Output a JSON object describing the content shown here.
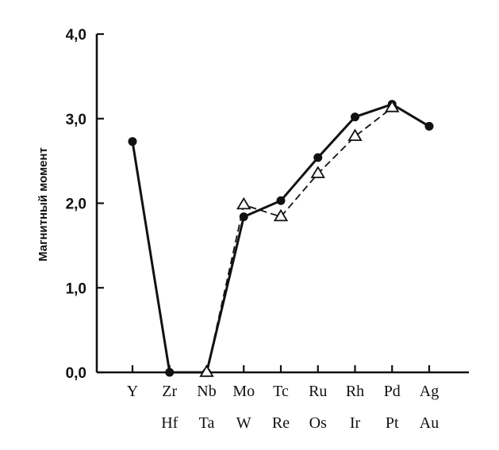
{
  "chart_data": {
    "type": "line",
    "title": "",
    "xlabel": "",
    "ylabel": "Магнитный момент",
    "ylim": [
      0,
      4
    ],
    "yticks": [
      "0,0",
      "1,0",
      "2,0",
      "3,0",
      "4,0"
    ],
    "categories_row1": [
      "Y",
      "Zr",
      "Nb",
      "Mo",
      "Tc",
      "Ru",
      "Rh",
      "Pd",
      "Ag"
    ],
    "categories_row2": [
      "",
      "Hf",
      "Ta",
      "W",
      "Re",
      "Os",
      "Ir",
      "Pt",
      "Au"
    ],
    "series": [
      {
        "marker": "filled-circle",
        "line": "solid",
        "values": [
          2.73,
          0.0,
          0.0,
          1.84,
          2.03,
          2.54,
          3.02,
          3.17,
          2.91
        ]
      },
      {
        "marker": "open-triangle",
        "line": "dashed",
        "values": [
          null,
          null,
          0.0,
          1.98,
          1.84,
          2.35,
          2.79,
          3.13,
          null
        ]
      }
    ],
    "grid": false,
    "colors": {
      "line": "#111111",
      "background": "#ffffff"
    }
  }
}
